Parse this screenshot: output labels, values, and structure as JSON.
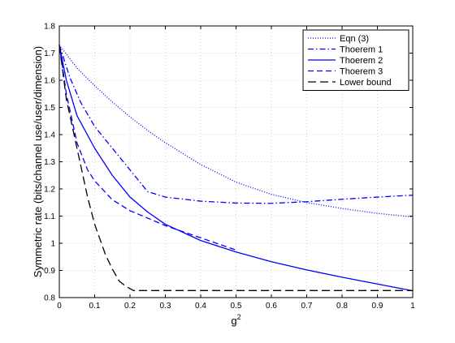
{
  "chart_data": {
    "type": "line",
    "title": "",
    "xlabel": "g",
    "xlabel_superscript": "2",
    "ylabel": "Symmetric rate (bits/channel use/user/dimension)",
    "xlim": [
      0,
      1
    ],
    "ylim": [
      0.8,
      1.8
    ],
    "xticks": [
      0,
      0.1,
      0.2,
      0.3,
      0.4,
      0.5,
      0.6,
      0.7,
      0.8,
      0.9,
      1
    ],
    "xtick_labels": [
      "0",
      "0.1",
      "0.2",
      "0.3",
      "0.4",
      "0.5",
      "0.6",
      "0.7",
      "0.8",
      "0.9",
      "1"
    ],
    "yticks": [
      0.8,
      0.9,
      1.0,
      1.1,
      1.2,
      1.3,
      1.4,
      1.5,
      1.6,
      1.7,
      1.8
    ],
    "ytick_labels": [
      "0.8",
      "0.9",
      "1",
      "1.1",
      "1.2",
      "1.3",
      "1.4",
      "1.5",
      "1.6",
      "1.7",
      "1.8"
    ],
    "grid": true,
    "legend_position": "top-right",
    "series": [
      {
        "name": "Eqn (3)",
        "style": "dotted",
        "color": "#0000ff",
        "x": [
          0,
          0.05,
          0.1,
          0.15,
          0.2,
          0.25,
          0.3,
          0.4,
          0.5,
          0.6,
          0.7,
          0.8,
          0.9,
          1.0
        ],
        "y": [
          1.73,
          1.645,
          1.58,
          1.52,
          1.465,
          1.415,
          1.37,
          1.29,
          1.225,
          1.18,
          1.15,
          1.128,
          1.11,
          1.097
        ]
      },
      {
        "name": "Thoerem 1",
        "style": "dashdot",
        "color": "#0000ff",
        "x": [
          0,
          0.03,
          0.06,
          0.1,
          0.15,
          0.2,
          0.25,
          0.3,
          0.4,
          0.5,
          0.6,
          0.7,
          0.8,
          0.9,
          1.0
        ],
        "y": [
          1.73,
          1.61,
          1.52,
          1.43,
          1.35,
          1.27,
          1.19,
          1.17,
          1.155,
          1.148,
          1.147,
          1.153,
          1.162,
          1.17,
          1.177
        ]
      },
      {
        "name": "Thoerem 2",
        "style": "solid",
        "color": "#0000ff",
        "x": [
          0,
          0.02,
          0.05,
          0.1,
          0.15,
          0.2,
          0.25,
          0.3,
          0.4,
          0.5,
          0.6,
          0.7,
          0.8,
          0.9,
          1.0
        ],
        "y": [
          1.73,
          1.6,
          1.47,
          1.35,
          1.25,
          1.17,
          1.115,
          1.07,
          1.01,
          0.968,
          0.932,
          0.902,
          0.875,
          0.85,
          0.825
        ]
      },
      {
        "name": "Thoerem 3",
        "style": "dashed",
        "color": "#0000ff",
        "x": [
          0,
          0.02,
          0.05,
          0.08,
          0.1,
          0.15,
          0.2,
          0.3,
          0.4,
          0.5
        ],
        "y": [
          1.73,
          1.55,
          1.37,
          1.27,
          1.23,
          1.16,
          1.12,
          1.065,
          1.02,
          0.975
        ]
      },
      {
        "name": "Lower bound",
        "style": "longdash",
        "color": "#000000",
        "x": [
          0,
          0.02,
          0.05,
          0.08,
          0.1,
          0.13,
          0.15,
          0.17,
          0.19,
          0.21,
          0.3,
          0.4,
          0.5,
          0.6,
          0.7,
          0.8,
          0.9,
          1.0
        ],
        "y": [
          1.73,
          1.53,
          1.35,
          1.17,
          1.07,
          0.96,
          0.905,
          0.86,
          0.84,
          0.826,
          0.826,
          0.826,
          0.826,
          0.826,
          0.826,
          0.826,
          0.826,
          0.826
        ]
      }
    ]
  }
}
